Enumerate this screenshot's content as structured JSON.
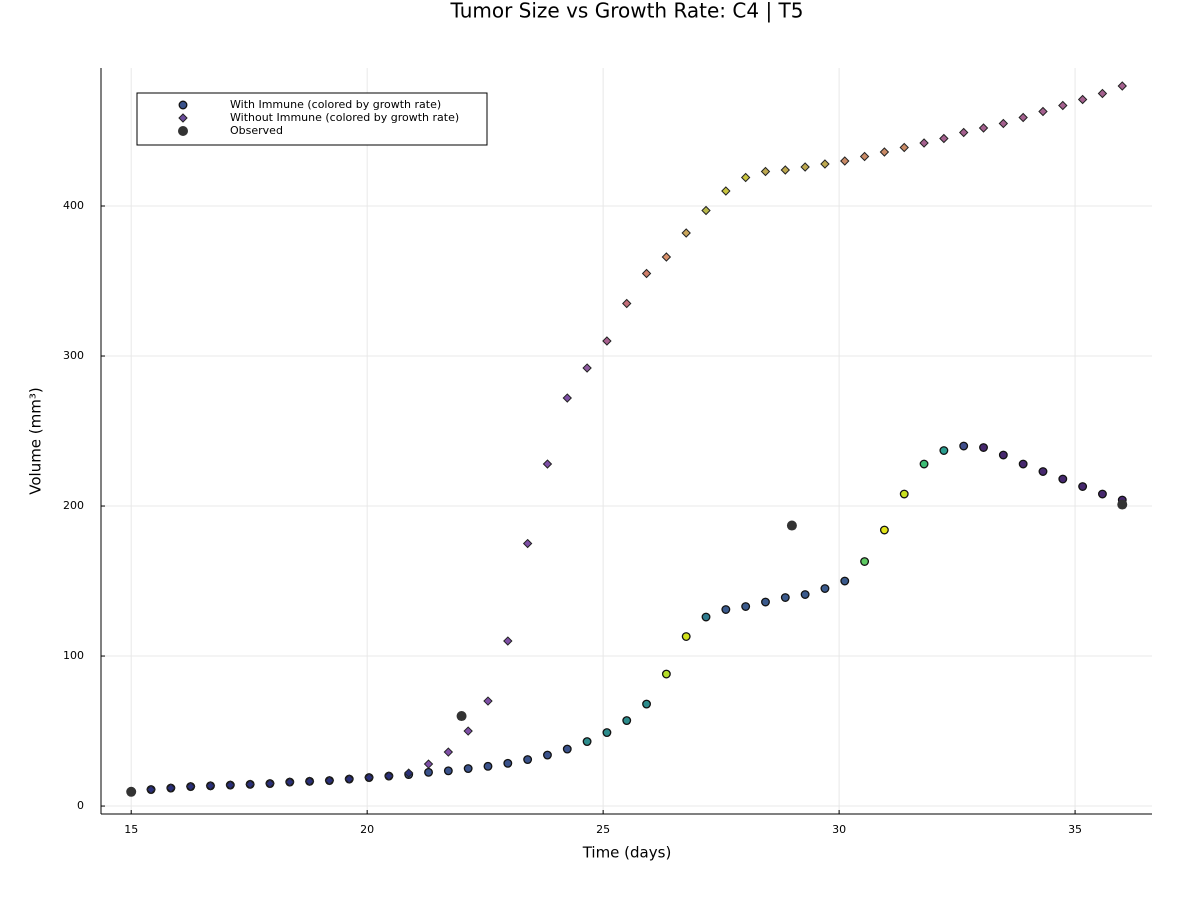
{
  "chart_data": {
    "type": "scatter",
    "title": "Tumor Size vs Growth Rate: C4 | T5",
    "x_label": "Time (days)",
    "y_label": "Volume (mm³)",
    "xlim": [
      14.36,
      36.63
    ],
    "ylim": [
      -5.3,
      492
    ],
    "xticks": [
      15,
      20,
      25,
      30,
      35
    ],
    "yticks": [
      0,
      100,
      200,
      300,
      400
    ],
    "grid": true,
    "legend": "upper-left",
    "series": [
      {
        "name": "With Immune (colored by growth rate)",
        "marker": "circle",
        "color": "#3a528b",
        "x": [
          15,
          15.42,
          15.84,
          16.26,
          16.68,
          17.1,
          17.52,
          17.94,
          18.36,
          18.78,
          19.2,
          19.62,
          20.04,
          20.46,
          20.88,
          21.3,
          21.72,
          22.14,
          22.56,
          22.98,
          23.4,
          23.82,
          24.24,
          24.66,
          25.08,
          25.5,
          25.92,
          26.34,
          26.76,
          27.18,
          27.6,
          28.02,
          28.44,
          28.86,
          29.28,
          29.7,
          30.12,
          30.54,
          30.96,
          31.38,
          31.8,
          32.22,
          32.64,
          33.06,
          33.48,
          33.9,
          34.32,
          34.74,
          35.16,
          35.58,
          36
        ],
        "values": [
          9.5,
          11,
          12,
          13,
          13.5,
          14,
          14.5,
          15,
          16,
          16.5,
          17,
          18,
          19,
          20,
          21,
          22.5,
          23.5,
          25,
          26.5,
          28.5,
          31,
          34,
          38,
          43,
          49,
          57,
          68,
          88,
          113,
          126,
          131,
          133,
          136,
          139,
          141,
          145,
          150,
          163,
          184,
          208,
          228,
          237,
          240,
          239,
          234,
          228,
          223,
          218,
          213,
          208,
          204
        ],
        "colors": [
          "#1a1f6e",
          "#1a1f6e",
          "#1a1f6e",
          "#1a1f6e",
          "#1a1f6e",
          "#1a1f6e",
          "#1a1f6e",
          "#1a1f6e",
          "#1a1f6e",
          "#1a1f6e",
          "#1a1f6e",
          "#1a1f6e",
          "#3a528b",
          "#3a528b",
          "#3a528b",
          "#3a528b",
          "#3a528b",
          "#3a528b",
          "#3a528b",
          "#3a528b",
          "#3a528b",
          "#3a528b",
          "#3a528b",
          "#2c8c8c",
          "#2c8c8c",
          "#2c8c8c",
          "#2c8c8c",
          "#b5de2b",
          "#d2e21b",
          "#2f7b8e",
          "#3b5a8c",
          "#3b5a8c",
          "#3b5a8c",
          "#3b5a8c",
          "#3b5a8c",
          "#3b5a8c",
          "#3b5a8c",
          "#5ec962",
          "#e0e318",
          "#c8e020",
          "#3dbc74",
          "#2a9d8f",
          "#3f4d8a",
          "#46286e",
          "#46286e",
          "#46286e",
          "#46286e",
          "#46286e",
          "#46286e",
          "#46286e",
          "#46286e"
        ]
      },
      {
        "name": "Without Immune (colored by growth rate)",
        "marker": "diamond",
        "color": "#6a4c9c",
        "x": [
          15,
          15.42,
          15.84,
          16.26,
          16.68,
          17.1,
          17.52,
          17.94,
          18.36,
          18.78,
          19.2,
          19.62,
          20.04,
          20.46,
          20.88,
          21.3,
          21.72,
          22.14,
          22.56,
          22.98,
          23.4,
          23.82,
          24.24,
          24.66,
          25.08,
          25.5,
          25.92,
          26.34,
          26.76,
          27.18,
          27.6,
          28.02,
          28.44,
          28.86,
          29.28,
          29.7,
          30.12,
          30.54,
          30.96,
          31.38,
          31.8,
          32.22,
          32.64,
          33.06,
          33.48,
          33.9,
          34.32,
          34.74,
          35.16,
          35.58,
          36
        ],
        "values": [
          9.5,
          11,
          12,
          13,
          13.5,
          14,
          14.5,
          15,
          16,
          16.5,
          17,
          18,
          19,
          20,
          22,
          28,
          36,
          50,
          70,
          110,
          175,
          228,
          272,
          292,
          310,
          335,
          355,
          366,
          382,
          397,
          410,
          419,
          423,
          424,
          426,
          428,
          430,
          433,
          436,
          439,
          442,
          445,
          449,
          452,
          455,
          459,
          463,
          467,
          471,
          475,
          480
        ],
        "colors": [
          "#2a2f7a",
          "#2a2f7a",
          "#2a2f7a",
          "#2a2f7a",
          "#2a2f7a",
          "#2a2f7a",
          "#2a2f7a",
          "#2a2f7a",
          "#2a2f7a",
          "#2a2f7a",
          "#2a2f7a",
          "#2a2f7a",
          "#2a2f7a",
          "#2a2f7a",
          "#2a2f7a",
          "#7e4fa6",
          "#7e4fa6",
          "#7e4fa6",
          "#7e4fa6",
          "#7e4fa6",
          "#7e4fa6",
          "#7e4fa6",
          "#7e4fa6",
          "#8e5aa0",
          "#a8608f",
          "#c46f7a",
          "#d07f6a",
          "#d8906a",
          "#c9a55a",
          "#b8b84a",
          "#c9c53f",
          "#c9c53f",
          "#bda84f",
          "#bda84f",
          "#bda84f",
          "#bda84f",
          "#c98a66",
          "#c98a66",
          "#c98a66",
          "#c98a66",
          "#a4608e",
          "#a4608e",
          "#a4608e",
          "#a4608e",
          "#a4608e",
          "#a4608e",
          "#a4608e",
          "#a4608e",
          "#a4608e",
          "#a4608e",
          "#a4608e"
        ]
      },
      {
        "name": "Observed",
        "marker": "dot",
        "color": "#333333",
        "x": [
          15,
          22,
          29,
          36
        ],
        "values": [
          9.5,
          60,
          187,
          201
        ]
      }
    ]
  }
}
